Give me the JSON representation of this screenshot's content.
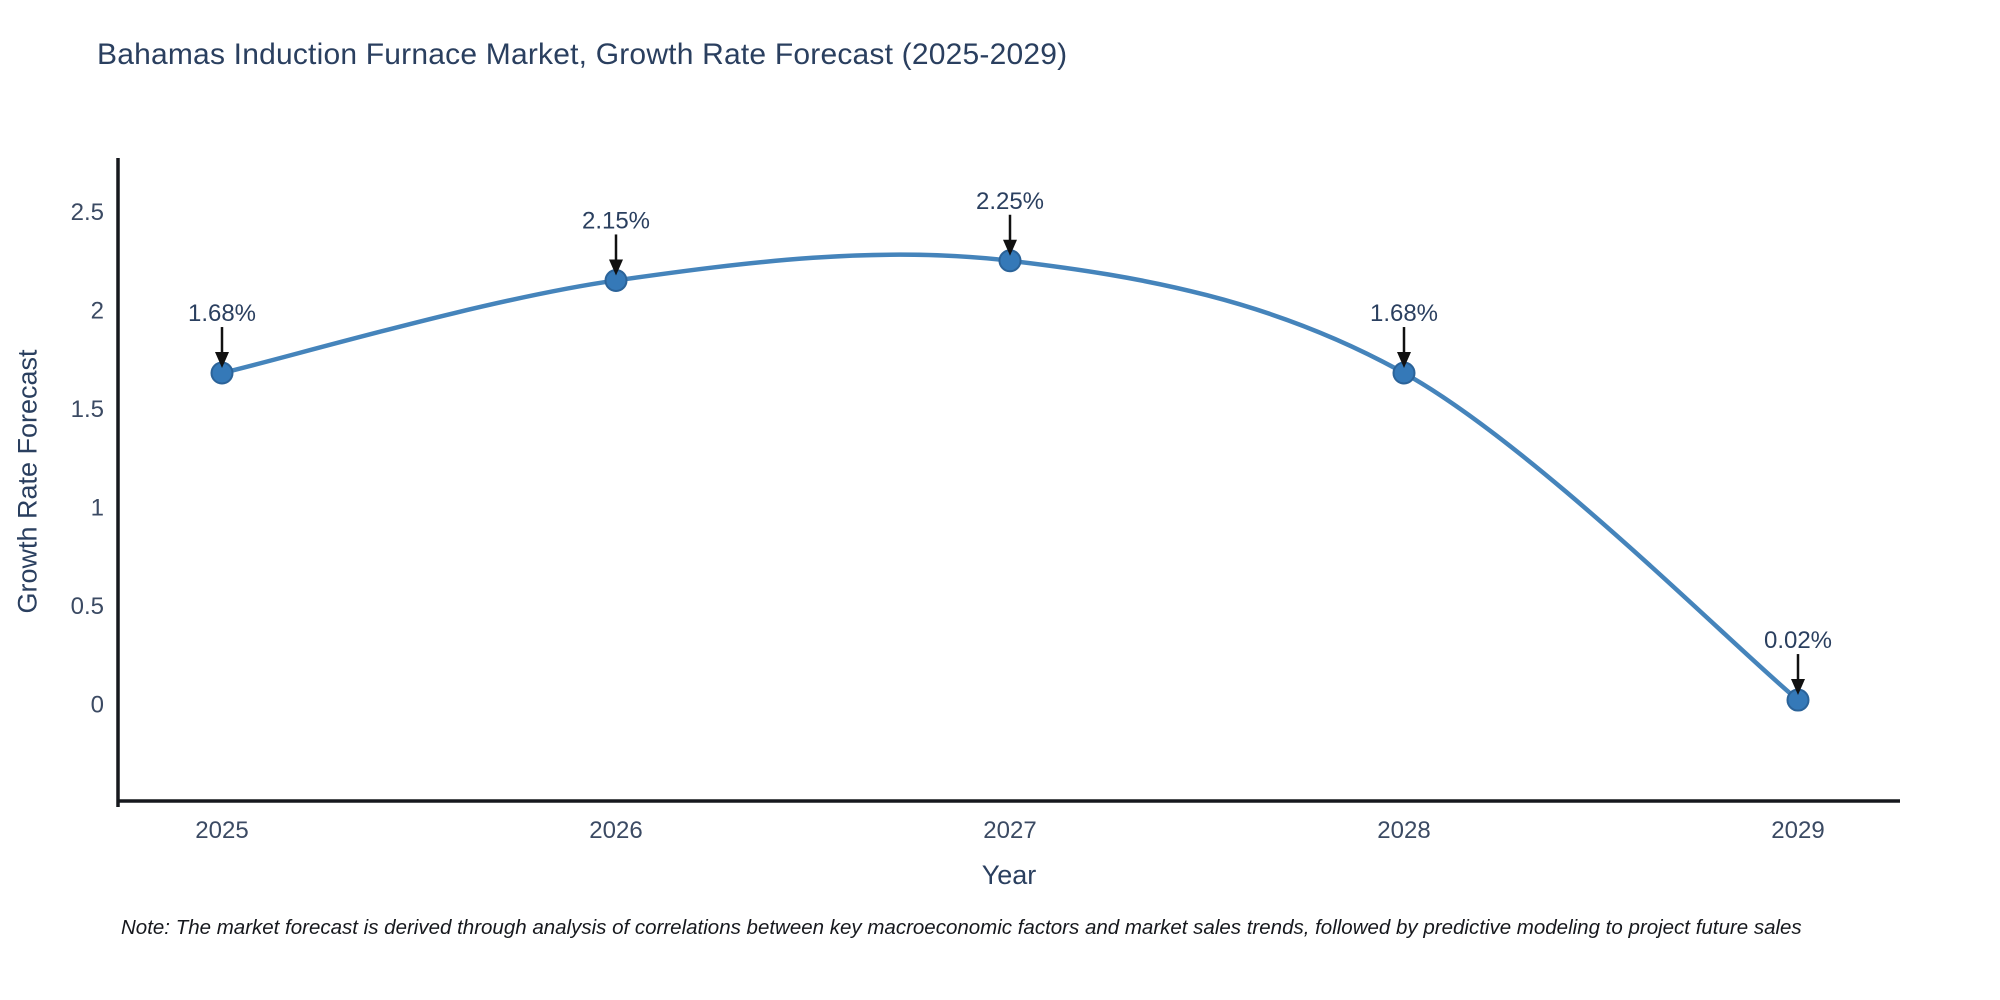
{
  "note": {
    "text": "Note: The market forecast is derived through analysis of correlations between key macroeconomic factors and market sales trends, followed by predictive modeling to project future sales"
  },
  "chart_data": {
    "type": "line",
    "title": "Bahamas Induction Furnace Market, Growth Rate Forecast (2025-2029)",
    "xlabel": "Year",
    "ylabel": "Growth Rate Forecast",
    "categories": [
      "2025",
      "2026",
      "2027",
      "2028",
      "2029"
    ],
    "series": [
      {
        "name": "Growth Rate Forecast",
        "values": [
          1.68,
          2.15,
          2.25,
          1.68,
          0.02
        ],
        "point_labels": [
          "1.68%",
          "2.15%",
          "2.25%",
          "1.68%",
          "0.02%"
        ]
      }
    ],
    "y_ticks": [
      0,
      0.5,
      1,
      1.5,
      2,
      2.5
    ],
    "ylim": [
      -0.5,
      2.76
    ],
    "xlim": [
      2024.73,
      2029.26
    ],
    "grid": false,
    "legend": "none",
    "line_style": "spline",
    "colors": {
      "line": "#4584bb",
      "marker_fill": "#3579b8",
      "marker_edge": "#2b6399",
      "axis_line": "#16181d",
      "annotation_arrow": "#111111",
      "title_text": "#2a3f5f",
      "tick_text": "#3b4a63"
    }
  }
}
